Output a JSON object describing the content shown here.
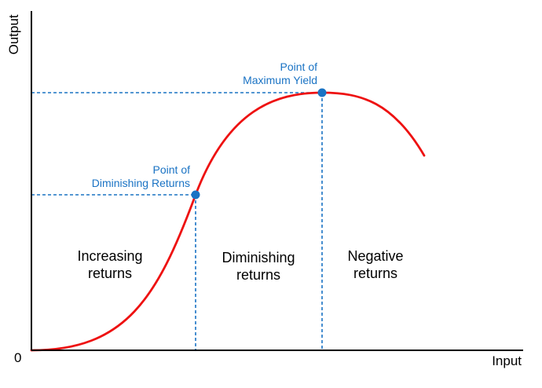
{
  "axes": {
    "y_label": "Output",
    "x_label": "Input",
    "origin_label": "0"
  },
  "points": {
    "diminishing": {
      "line1": "Point of",
      "line2": "Diminishing Returns"
    },
    "maximum": {
      "line1": "Point of",
      "line2": "Maximum Yield"
    }
  },
  "regions": {
    "increasing": {
      "line1": "Increasing",
      "line2": "returns"
    },
    "diminishing": {
      "line1": "Diminishing",
      "line2": "returns"
    },
    "negative": {
      "line1": "Negative",
      "line2": "returns"
    }
  },
  "colors": {
    "curve": "#ee1111",
    "accent": "#1a73c4",
    "axis": "#000000"
  }
}
